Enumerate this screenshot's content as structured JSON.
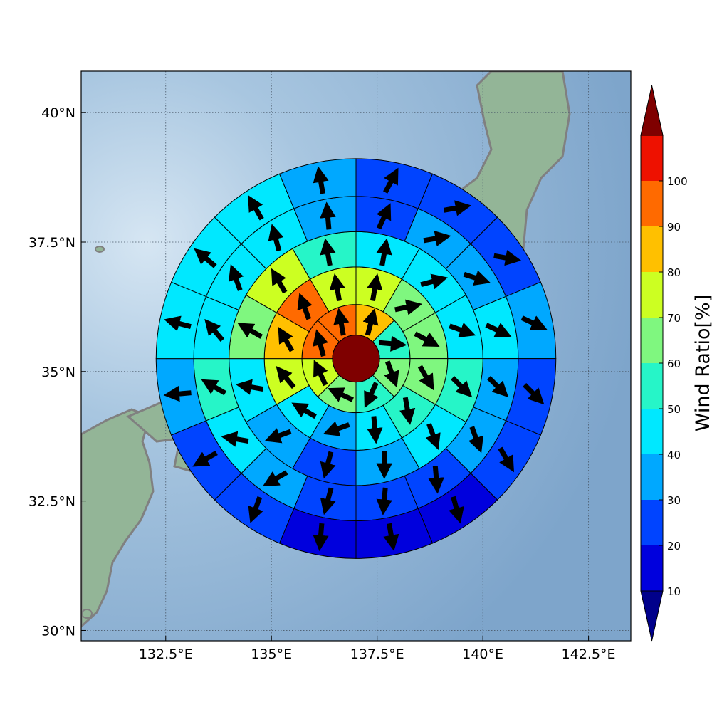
{
  "map": {
    "lon_range": [
      130.5,
      143.5
    ],
    "lat_range": [
      29.8,
      40.8
    ],
    "center": {
      "lon": 137.0,
      "lat": 35.25
    },
    "x_ticks": [
      {
        "value": 132.5,
        "label": "132.5°E"
      },
      {
        "value": 135,
        "label": "135°E"
      },
      {
        "value": 137.5,
        "label": "137.5°E"
      },
      {
        "value": 140,
        "label": "140°E"
      },
      {
        "value": 142.5,
        "label": "142.5°E"
      }
    ],
    "y_ticks": [
      {
        "value": 30,
        "label": "30°N"
      },
      {
        "value": 32.5,
        "label": "32.5°N"
      },
      {
        "value": 35,
        "label": "35°N"
      },
      {
        "value": 37.5,
        "label": "37.5°N"
      },
      {
        "value": 40,
        "label": "40°N"
      }
    ],
    "grid": true,
    "ocean_color": "#8fb3d4",
    "land_color": "#8fb394",
    "coast_color": "#808080",
    "ring_radii_deg": [
      0.5,
      1.15,
      1.95,
      2.7,
      3.45,
      4.25
    ],
    "sectors_per_ring": [
      8,
      12,
      12,
      16,
      16
    ],
    "note_ring_values": "ring values listed clockwise from north, in percent"
  },
  "wind": {
    "center_value": 100,
    "rings": [
      [
        80,
        55,
        65,
        55,
        65,
        75,
        95,
        95
      ],
      [
        75,
        65,
        65,
        65,
        55,
        45,
        35,
        45,
        75,
        85,
        95,
        75
      ],
      [
        45,
        45,
        45,
        55,
        45,
        35,
        25,
        35,
        45,
        65,
        75,
        55
      ],
      [
        25,
        35,
        35,
        45,
        35,
        35,
        25,
        25,
        25,
        35,
        45,
        55,
        45,
        45,
        45,
        35
      ],
      [
        25,
        25,
        25,
        35,
        25,
        25,
        15,
        15,
        15,
        25,
        25,
        35,
        45,
        45,
        45,
        35
      ]
    ],
    "directions_deg": [
      [
        15,
        95,
        160,
        205,
        295,
        335,
        345,
        350
      ],
      [
        10,
        78,
        118,
        150,
        170,
        175,
        250,
        300,
        320,
        330,
        340,
        350
      ],
      [
        10,
        75,
        110,
        135,
        160,
        180,
        195,
        250,
        280,
        300,
        330,
        350
      ],
      [
        25,
        80,
        108,
        115,
        135,
        160,
        175,
        185,
        195,
        240,
        280,
        300,
        320,
        340,
        345,
        355
      ],
      [
        28,
        80,
        100,
        115,
        135,
        150,
        165,
        170,
        185,
        200,
        240,
        265,
        285,
        310,
        330,
        350
      ]
    ]
  },
  "colorbar": {
    "title": "Wind Ratio[%]",
    "ticks": [
      "10",
      "20",
      "30",
      "40",
      "50",
      "60",
      "70",
      "80",
      "90",
      "100"
    ],
    "bounds": [
      10,
      20,
      30,
      40,
      50,
      60,
      70,
      80,
      90,
      100
    ],
    "colors": [
      "#0000dd",
      "#0044ff",
      "#00a8ff",
      "#00e8ff",
      "#26f5c8",
      "#7ff77f",
      "#ccff22",
      "#ffc000",
      "#ff6a00",
      "#ee1100"
    ],
    "under_color": "#00008b",
    "over_color": "#7f0000"
  }
}
